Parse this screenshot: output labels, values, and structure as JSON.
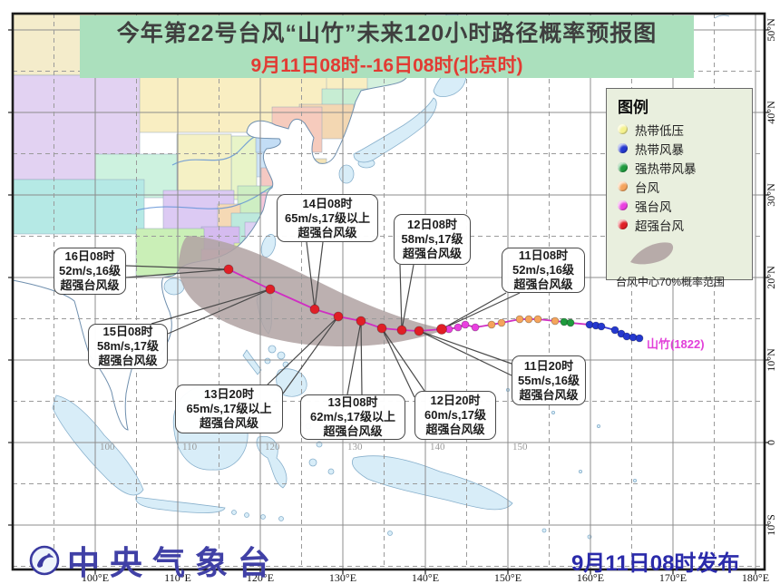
{
  "header": {
    "title": "今年第22号台风“山竹”未来120小时路径概率预报图",
    "subtitle": "9月11日08时--16日08时(北京时)"
  },
  "legend": {
    "title": "图例",
    "items": [
      {
        "label": "热带低压",
        "color": "#f5f28e"
      },
      {
        "label": "热带风暴",
        "color": "#2438cf"
      },
      {
        "label": "强热带风暴",
        "color": "#1f9a3d"
      },
      {
        "label": "台风",
        "color": "#f5a45c"
      },
      {
        "label": "强台风",
        "color": "#ea3fe0"
      },
      {
        "label": "超强台风",
        "color": "#e01f26"
      }
    ],
    "cone_caption": "台风中心70%概率范围"
  },
  "callouts": [
    {
      "time": "16日08时",
      "wind": "52m/s,16级",
      "level": "超强台风级"
    },
    {
      "time": "15日08时",
      "wind": "58m/s,17级",
      "level": "超强台风级"
    },
    {
      "time": "14日08时",
      "wind": "65m/s,17级以上",
      "level": "超强台风级"
    },
    {
      "time": "13日20时",
      "wind": "65m/s,17级以上",
      "level": "超强台风级"
    },
    {
      "time": "13日08时",
      "wind": "62m/s,17级以上",
      "level": "超强台风级"
    },
    {
      "time": "12日20时",
      "wind": "60m/s,17级",
      "level": "超强台风级"
    },
    {
      "time": "12日08时",
      "wind": "58m/s,17级",
      "level": "超强台风级"
    },
    {
      "time": "11日20时",
      "wind": "55m/s,16级",
      "level": "超强台风级"
    },
    {
      "time": "11日08时",
      "wind": "52m/s,16级",
      "level": "超强台风级"
    }
  ],
  "storm_label": "山竹(1822)",
  "track": {
    "forecast": {
      "category": "超强台风",
      "points": [
        [
          252,
          297
        ],
        [
          298,
          319
        ],
        [
          347,
          341
        ],
        [
          373,
          349
        ],
        [
          398,
          354
        ],
        [
          421,
          362
        ],
        [
          443,
          364
        ],
        [
          462,
          365
        ],
        [
          487,
          363
        ]
      ]
    },
    "past": [
      {
        "category": "强台风",
        "points": [
          [
            495,
            363
          ],
          [
            505,
            361
          ],
          [
            513,
            358
          ],
          [
            524,
            361
          ]
        ]
      },
      {
        "category": "台风",
        "points": [
          [
            542,
            358
          ],
          [
            553,
            356
          ],
          [
            573,
            352
          ],
          [
            583,
            352
          ],
          [
            593,
            352
          ],
          [
            612,
            354
          ]
        ]
      },
      {
        "category": "强热带风暴",
        "points": [
          [
            622,
            355
          ],
          [
            629,
            356
          ]
        ]
      },
      {
        "category": "热带风暴",
        "points": [
          [
            650,
            358
          ],
          [
            657,
            359
          ],
          [
            663,
            360
          ],
          [
            678,
            364
          ],
          [
            685,
            368
          ],
          [
            691,
            371
          ],
          [
            698,
            372
          ],
          [
            705,
            373
          ]
        ]
      }
    ]
  },
  "colors": {
    "热带低压": "#f5f28e",
    "热带风暴": "#2438cf",
    "强热带风暴": "#1f9a3d",
    "台风": "#f5a45c",
    "强台风": "#ea3fe0",
    "超强台风": "#e01f26",
    "track_line": "#cf2fc2",
    "track_line_tail": "#3a3ad6",
    "cone": "#b1a3a3"
  },
  "axes": {
    "bottom": [
      "100°E",
      "110°E",
      "120°E",
      "130°E",
      "140°E",
      "150°E",
      "160°E",
      "170°E",
      "180°E"
    ],
    "right": [
      "50°N",
      "40°N",
      "30°N",
      "20°N",
      "10°N",
      "0",
      "10°S"
    ],
    "equator_labels": [
      "100",
      "110",
      "120",
      "130",
      "140",
      "150"
    ]
  },
  "footer": {
    "agency": "中央气象台",
    "issued": "9月11日08时发布"
  }
}
